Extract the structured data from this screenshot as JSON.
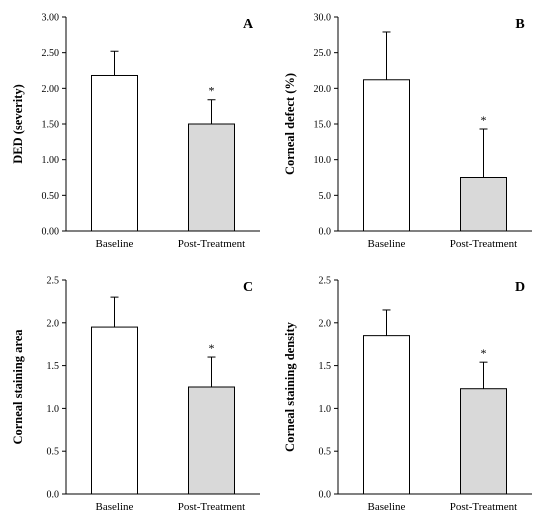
{
  "chart_data": [
    {
      "type": "bar",
      "panel_label": "A",
      "title": "",
      "xlabel": "",
      "ylabel": "DED (severity)",
      "categories": [
        "Baseline",
        "Post-Treatment"
      ],
      "values": [
        2.18,
        1.5
      ],
      "error": [
        0.34,
        0.34
      ],
      "significance": [
        "",
        "*"
      ],
      "bar_colors": [
        "#ffffff",
        "#d9d9d9"
      ],
      "ylim": [
        0,
        3.0
      ],
      "yticks": [
        "0.00",
        "0.50",
        "1.00",
        "1.50",
        "2.00",
        "2.50",
        "3.00"
      ],
      "grid": false,
      "legend": "none"
    },
    {
      "type": "bar",
      "panel_label": "B",
      "title": "",
      "xlabel": "",
      "ylabel": "Corneal defect (%)",
      "categories": [
        "Baseline",
        "Post-Treatment"
      ],
      "values": [
        21.2,
        7.5
      ],
      "error": [
        6.7,
        6.8
      ],
      "significance": [
        "",
        "*"
      ],
      "bar_colors": [
        "#ffffff",
        "#d9d9d9"
      ],
      "ylim": [
        0,
        30.0
      ],
      "yticks": [
        "0.0",
        "5.0",
        "10.0",
        "15.0",
        "20.0",
        "25.0",
        "30.0"
      ],
      "grid": false,
      "legend": "none"
    },
    {
      "type": "bar",
      "panel_label": "C",
      "title": "",
      "xlabel": "",
      "ylabel": "Corneal  staining area",
      "categories": [
        "Baseline",
        "Post-Treatment"
      ],
      "values": [
        1.95,
        1.25
      ],
      "error": [
        0.35,
        0.35
      ],
      "significance": [
        "",
        "*"
      ],
      "bar_colors": [
        "#ffffff",
        "#d9d9d9"
      ],
      "ylim": [
        0,
        2.5
      ],
      "yticks": [
        "0.0",
        "0.5",
        "1.0",
        "1.5",
        "2.0",
        "2.5"
      ],
      "grid": false,
      "legend": "none"
    },
    {
      "type": "bar",
      "panel_label": "D",
      "title": "",
      "xlabel": "",
      "ylabel": "Corneal staining density",
      "categories": [
        "Baseline",
        "Post-Treatment"
      ],
      "values": [
        1.85,
        1.23
      ],
      "error": [
        0.3,
        0.31
      ],
      "significance": [
        "",
        "*"
      ],
      "bar_colors": [
        "#ffffff",
        "#d9d9d9"
      ],
      "ylim": [
        0,
        2.5
      ],
      "yticks": [
        "0.0",
        "0.5",
        "1.0",
        "1.5",
        "2.0",
        "2.5"
      ],
      "grid": false,
      "legend": "none"
    }
  ]
}
